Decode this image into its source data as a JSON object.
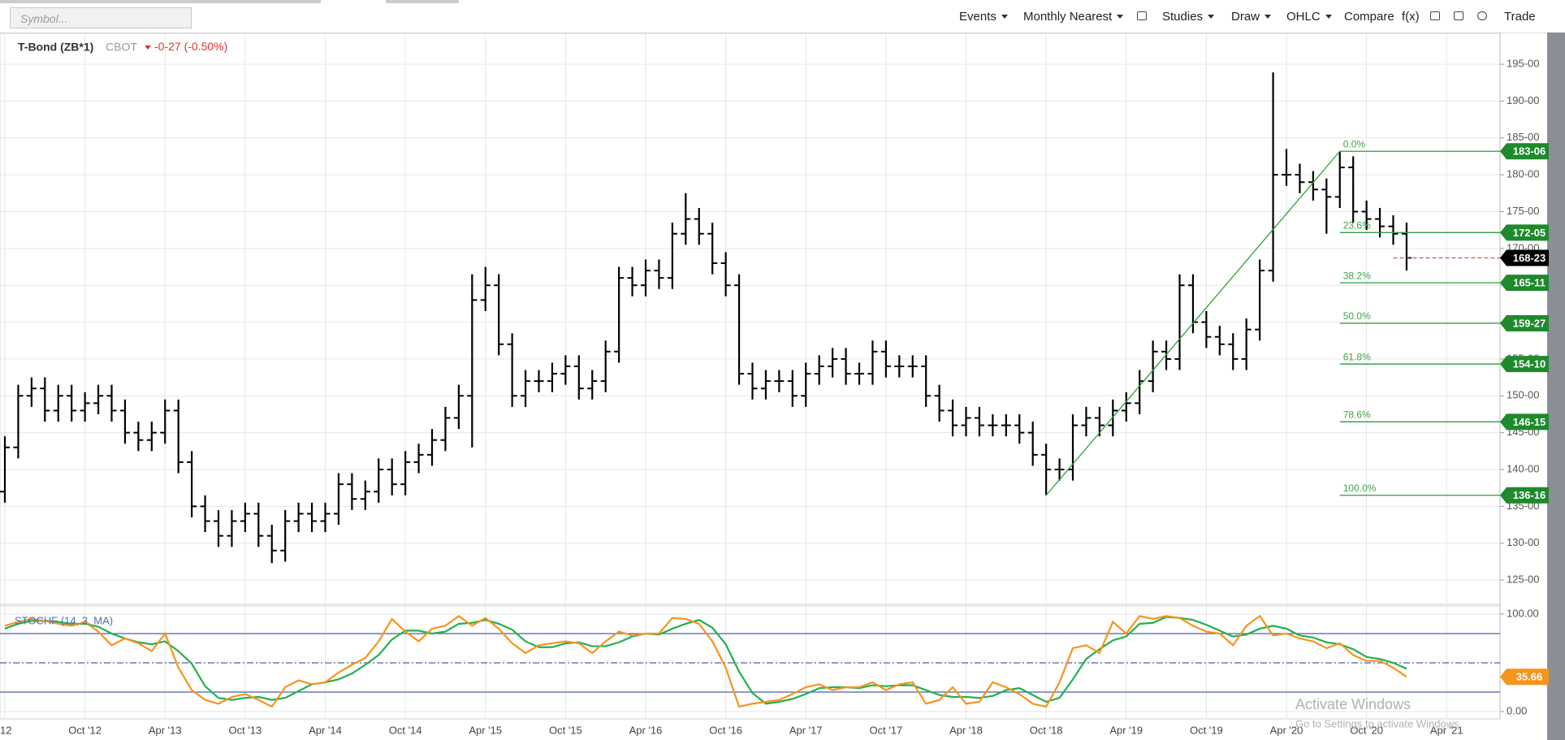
{
  "toolbar": {
    "symbol_placeholder": "Symbol...",
    "menus": [
      "Events",
      "Monthly Nearest",
      "Studies",
      "Draw",
      "OHLC"
    ],
    "buttons": [
      "Compare",
      "f(x)",
      "Trade"
    ]
  },
  "chart_data": [
    {
      "type": "ohlc",
      "title": "T-Bond (ZB*1)",
      "exchange": "CBOT",
      "change": "-0-27 (-0.50%)",
      "color": "#000000",
      "grid": true,
      "x": [
        "2012-04",
        "2012-05",
        "2012-06",
        "2012-07",
        "2012-08",
        "2012-09",
        "2012-10",
        "2012-11",
        "2012-12",
        "2013-01",
        "2013-02",
        "2013-03",
        "2013-04",
        "2013-05",
        "2013-06",
        "2013-07",
        "2013-08",
        "2013-09",
        "2013-10",
        "2013-11",
        "2013-12",
        "2014-01",
        "2014-02",
        "2014-03",
        "2014-04",
        "2014-05",
        "2014-06",
        "2014-07",
        "2014-08",
        "2014-09",
        "2014-10",
        "2014-11",
        "2014-12",
        "2015-01",
        "2015-02",
        "2015-03",
        "2015-04",
        "2015-05",
        "2015-06",
        "2015-07",
        "2015-08",
        "2015-09",
        "2015-10",
        "2015-11",
        "2015-12",
        "2016-01",
        "2016-02",
        "2016-03",
        "2016-04",
        "2016-05",
        "2016-06",
        "2016-07",
        "2016-08",
        "2016-09",
        "2016-10",
        "2016-11",
        "2016-12",
        "2017-01",
        "2017-02",
        "2017-03",
        "2017-04",
        "2017-05",
        "2017-06",
        "2017-07",
        "2017-08",
        "2017-09",
        "2017-10",
        "2017-11",
        "2017-12",
        "2018-01",
        "2018-02",
        "2018-03",
        "2018-04",
        "2018-05",
        "2018-06",
        "2018-07",
        "2018-08",
        "2018-09",
        "2018-10",
        "2018-11",
        "2018-12",
        "2019-01",
        "2019-02",
        "2019-03",
        "2019-04",
        "2019-05",
        "2019-06",
        "2019-07",
        "2019-08",
        "2019-09",
        "2019-10",
        "2019-11",
        "2019-12",
        "2020-01",
        "2020-02",
        "2020-03",
        "2020-04",
        "2020-05",
        "2020-06",
        "2020-07",
        "2020-08",
        "2020-09",
        "2020-10",
        "2020-11",
        "2020-12",
        "2021-01"
      ],
      "open": [
        137,
        143,
        150,
        151,
        148,
        150,
        148,
        149,
        150,
        148,
        145,
        144,
        145,
        148,
        141,
        135,
        133,
        131,
        133,
        134,
        131,
        129,
        133,
        134,
        133,
        134,
        138,
        136,
        137,
        140,
        138,
        141,
        142,
        144,
        147,
        150,
        163,
        165,
        157,
        150,
        152,
        152,
        153,
        154,
        151,
        152,
        156,
        166,
        165,
        167,
        166,
        172,
        174,
        172,
        168,
        165,
        153,
        151,
        152,
        152,
        150,
        153,
        154,
        155,
        153,
        153,
        156,
        154,
        154,
        154,
        150,
        148,
        146,
        147,
        146,
        146,
        146,
        145,
        142,
        140,
        140,
        146,
        147,
        146,
        148,
        149,
        152,
        156,
        155,
        165,
        160,
        158,
        157,
        155,
        159,
        167,
        180,
        180,
        179,
        178,
        177,
        181,
        175,
        174,
        173,
        172
      ],
      "high": [
        144.5,
        151.5,
        152.5,
        152.5,
        151.5,
        151.5,
        150.5,
        151.5,
        151.5,
        149.5,
        146.5,
        146.5,
        149.5,
        149.5,
        142.5,
        136.5,
        134.5,
        134.5,
        135.5,
        135.5,
        132.5,
        134.5,
        135.5,
        135.5,
        135.5,
        139.5,
        139.5,
        138.5,
        141.5,
        141.5,
        142.5,
        143.5,
        145.5,
        148.5,
        151.5,
        166.5,
        167.5,
        166.5,
        158.5,
        153.5,
        153.5,
        154.5,
        155.5,
        155.5,
        153.5,
        157.5,
        167.5,
        167.5,
        168.5,
        168.5,
        173.5,
        177.5,
        175.5,
        173.5,
        169.5,
        166.5,
        154.5,
        153.5,
        153.5,
        153.5,
        154.5,
        155.5,
        156.5,
        156.5,
        154.5,
        157.5,
        157.5,
        155.5,
        155.5,
        155.5,
        151.5,
        149.5,
        148.5,
        148.5,
        147.5,
        147.5,
        147.5,
        146.5,
        143.5,
        141.5,
        147.5,
        148.5,
        148.5,
        149.5,
        150.5,
        153.5,
        157.5,
        157.5,
        166.5,
        166.5,
        161.5,
        159.5,
        158.5,
        160.5,
        168.5,
        193.9,
        183.5,
        181.5,
        180.5,
        179.5,
        183.1875,
        182.5,
        176.5,
        175.5,
        174.5,
        173.5
      ],
      "low": [
        135.5,
        141.5,
        148.5,
        146.5,
        146.5,
        146.5,
        146.5,
        147.5,
        146.5,
        143.5,
        142.5,
        142.5,
        143.5,
        139.5,
        133.5,
        131.5,
        129.5,
        129.5,
        131.5,
        129.5,
        127.3,
        127.5,
        131.5,
        131.5,
        131.5,
        132.5,
        134.5,
        134.5,
        135.5,
        136.5,
        136.5,
        139.5,
        140.5,
        142.5,
        145.5,
        143,
        161.5,
        155.5,
        148.5,
        148.5,
        150.5,
        150.5,
        151.5,
        149.5,
        149.5,
        150.5,
        154.5,
        163.5,
        163.5,
        164.5,
        164.5,
        170.5,
        170.5,
        166.5,
        163.5,
        151.5,
        149.5,
        149.5,
        150.5,
        148.5,
        148.5,
        151.5,
        152.5,
        151.5,
        151.5,
        151.5,
        152.5,
        152.5,
        152.5,
        148.5,
        146.5,
        144.5,
        144.5,
        144.5,
        144.5,
        144.5,
        143.5,
        140.5,
        136.5,
        138.5,
        138.5,
        144.5,
        144.5,
        144.5,
        146.5,
        147.5,
        150.5,
        153.5,
        153.5,
        158.5,
        156.5,
        155.5,
        153.5,
        153.5,
        157.5,
        165.5,
        178.5,
        177.5,
        176.5,
        172,
        175.5,
        173.5,
        172.5,
        171.5,
        170.5,
        167
      ],
      "close": [
        143,
        150,
        151,
        148,
        150,
        148,
        149,
        150,
        148,
        145,
        144,
        145,
        148,
        141,
        135,
        133,
        131,
        133,
        134,
        131,
        129,
        133,
        134,
        133,
        134,
        138,
        136,
        137,
        140,
        138,
        141,
        142,
        144,
        147,
        150,
        163,
        165,
        157,
        150,
        152,
        152,
        153,
        154,
        151,
        152,
        156,
        166,
        165,
        167,
        166,
        172,
        174,
        172,
        168,
        165,
        153,
        151,
        152,
        152,
        150,
        153,
        154,
        155,
        153,
        153,
        156,
        154,
        154,
        154,
        150,
        148,
        146,
        147,
        146,
        146,
        146,
        145,
        142,
        140,
        140,
        146,
        147,
        146,
        148,
        149,
        152,
        156,
        155,
        165,
        160,
        158,
        157,
        155,
        159,
        167,
        180,
        180,
        179,
        178,
        177,
        181,
        175,
        174,
        173,
        172,
        168.72
      ],
      "last_price": {
        "value": 168.71875,
        "label": "168-23"
      },
      "xlim": [
        "2012-04",
        "2021-08"
      ],
      "xticks": [
        {
          "value": "2012-04",
          "label": "'12"
        },
        {
          "value": "2012-10",
          "label": "Oct '12"
        },
        {
          "value": "2013-04",
          "label": "Apr '13"
        },
        {
          "value": "2013-10",
          "label": "Oct '13"
        },
        {
          "value": "2014-04",
          "label": "Apr '14"
        },
        {
          "value": "2014-10",
          "label": "Oct '14"
        },
        {
          "value": "2015-04",
          "label": "Apr '15"
        },
        {
          "value": "2015-10",
          "label": "Oct '15"
        },
        {
          "value": "2016-04",
          "label": "Apr '16"
        },
        {
          "value": "2016-10",
          "label": "Oct '16"
        },
        {
          "value": "2017-04",
          "label": "Apr '17"
        },
        {
          "value": "2017-10",
          "label": "Oct '17"
        },
        {
          "value": "2018-04",
          "label": "Apr '18"
        },
        {
          "value": "2018-10",
          "label": "Oct '18"
        },
        {
          "value": "2019-04",
          "label": "Apr '19"
        },
        {
          "value": "2019-10",
          "label": "Oct '19"
        },
        {
          "value": "2020-04",
          "label": "Apr '20"
        },
        {
          "value": "2020-10",
          "label": "Oct '20"
        },
        {
          "value": "2021-04",
          "label": "Apr '21"
        }
      ],
      "ylim": [
        121.7,
        199.2
      ],
      "yticks": [
        {
          "value": 125,
          "label": "125-00"
        },
        {
          "value": 130,
          "label": "130-00"
        },
        {
          "value": 135,
          "label": "135-00"
        },
        {
          "value": 140,
          "label": "140-00"
        },
        {
          "value": 145,
          "label": "145-00"
        },
        {
          "value": 150,
          "label": "150-00"
        },
        {
          "value": 155,
          "label": "155-00"
        },
        {
          "value": 160,
          "label": "160-00"
        },
        {
          "value": 165,
          "label": "165-00"
        },
        {
          "value": 170,
          "label": "170-00"
        },
        {
          "value": 175,
          "label": "175-00"
        },
        {
          "value": 180,
          "label": "180-00"
        },
        {
          "value": 185,
          "label": "185-00"
        },
        {
          "value": 190,
          "label": "190-00"
        },
        {
          "value": 195,
          "label": "195-00"
        }
      ],
      "trendline": {
        "color": "#2e9e3e",
        "x": [
          "2018-10",
          "2020-08"
        ],
        "values": [
          136.5,
          183.1875
        ]
      },
      "fibonacci": {
        "color": "#2e9e3e",
        "labels": [
          "0.0%",
          "23.6%",
          "38.2%",
          "50.0%",
          "61.8%",
          "78.6%",
          "100.0%"
        ],
        "values": [
          183.1875,
          172.15625,
          165.34375,
          159.84375,
          154.3125,
          146.46875,
          136.5
        ],
        "value_labels": [
          "183-06",
          "172-05",
          "165-11",
          "159-27",
          "154-10",
          "146-15",
          "136-16"
        ]
      }
    },
    {
      "type": "line",
      "title": "STOCHF (14, 3, MA)",
      "grid": true,
      "series": [
        {
          "color": "#22b14c",
          "values": [
            85,
            90,
            93,
            93,
            92,
            90,
            90,
            87,
            80,
            75,
            71,
            69,
            72,
            62,
            49,
            26,
            14,
            12,
            14,
            15,
            12,
            14,
            21,
            28,
            30,
            33,
            39,
            48,
            58,
            74,
            83,
            83,
            80,
            82,
            90,
            91,
            94,
            90,
            84,
            72,
            66,
            66,
            70,
            71,
            67,
            67,
            71,
            77,
            80,
            79,
            85,
            90,
            94,
            86,
            69,
            41,
            19,
            8,
            10,
            13,
            18,
            24,
            25,
            25,
            24,
            27,
            26,
            27,
            27,
            22,
            17,
            15,
            15,
            14,
            16,
            22,
            24,
            17,
            10,
            14,
            33,
            54,
            64,
            73,
            77,
            90,
            91,
            97,
            96,
            94,
            89,
            83,
            77,
            79,
            85,
            88,
            85,
            78,
            76,
            71,
            69,
            64,
            56,
            54,
            50,
            44
          ]
        },
        {
          "color": "#f7941d",
          "values": [
            88,
            92,
            95,
            93,
            90,
            88,
            92,
            82,
            68,
            75,
            70,
            62,
            80,
            45,
            22,
            12,
            8,
            15,
            18,
            12,
            5,
            25,
            32,
            28,
            30,
            40,
            48,
            55,
            72,
            95,
            82,
            72,
            85,
            88,
            98,
            88,
            96,
            85,
            70,
            60,
            68,
            70,
            72,
            70,
            60,
            72,
            82,
            78,
            80,
            80,
            96,
            95,
            90,
            72,
            45,
            5,
            8,
            10,
            12,
            18,
            25,
            28,
            22,
            25,
            25,
            30,
            22,
            28,
            30,
            8,
            12,
            25,
            8,
            10,
            30,
            25,
            18,
            8,
            5,
            30,
            65,
            68,
            60,
            92,
            80,
            98,
            95,
            98,
            96,
            88,
            82,
            80,
            68,
            88,
            98,
            78,
            80,
            75,
            72,
            65,
            70,
            58,
            52,
            52,
            45,
            35.66
          ]
        }
      ],
      "reference_lines": [
        80,
        50,
        20
      ],
      "ylim": [
        -7.5,
        108.3
      ],
      "yticks": [
        {
          "value": 0,
          "label": "0.00"
        },
        {
          "value": 100,
          "label": "100.00"
        }
      ]
    }
  ],
  "overlay": {
    "watermark_title": "Activate Windows",
    "watermark_text": "Go to Settings to activate Windows."
  }
}
